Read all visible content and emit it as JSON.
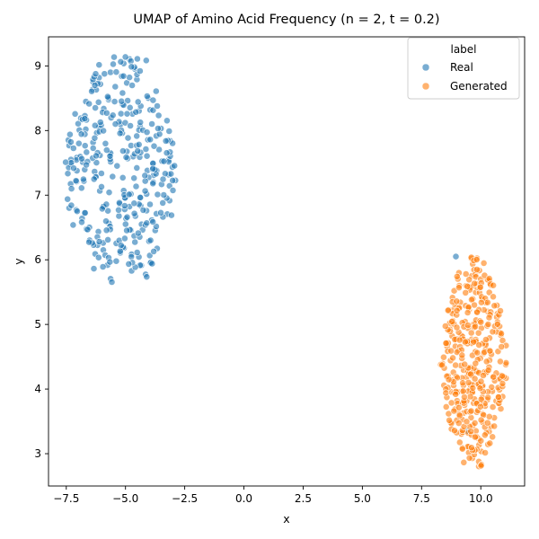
{
  "chart_data": {
    "type": "scatter",
    "title": "UMAP of Amino Acid Frequency (n = 2, t = 0.2)",
    "xlabel": "x",
    "ylabel": "y",
    "xlim": [
      -8.25,
      11.85
    ],
    "ylim": [
      2.5,
      9.45
    ],
    "xticks": [
      -7.5,
      -5.0,
      -2.5,
      0.0,
      2.5,
      5.0,
      7.5,
      10.0
    ],
    "xtick_labels": [
      "−7.5",
      "−5.0",
      "−2.5",
      "0.0",
      "2.5",
      "5.0",
      "7.5",
      "10.0"
    ],
    "yticks": [
      3,
      4,
      5,
      6,
      7,
      8,
      9
    ],
    "ytick_labels": [
      "3",
      "4",
      "5",
      "6",
      "7",
      "8",
      "9"
    ],
    "legend": {
      "title": "label",
      "position": "top-right",
      "entries": [
        "Real",
        "Generated"
      ]
    },
    "grid": false,
    "series": [
      {
        "name": "Real",
        "color": "#1f77b4",
        "generator": {
          "x_range": [
            -7.6,
            -2.8
          ],
          "y_range": [
            5.65,
            9.15
          ],
          "count": 350,
          "seed": 17,
          "shape": "blob-top"
        },
        "extra_points": [
          [
            9.45,
            3.35
          ],
          [
            8.95,
            6.05
          ]
        ]
      },
      {
        "name": "Generated",
        "color": "#ff7f0e",
        "generator": {
          "x_range": [
            8.3,
            11.1
          ],
          "y_range": [
            2.8,
            6.05
          ],
          "count": 380,
          "seed": 29,
          "shape": "blob-bottom"
        },
        "extra_points": []
      }
    ]
  }
}
